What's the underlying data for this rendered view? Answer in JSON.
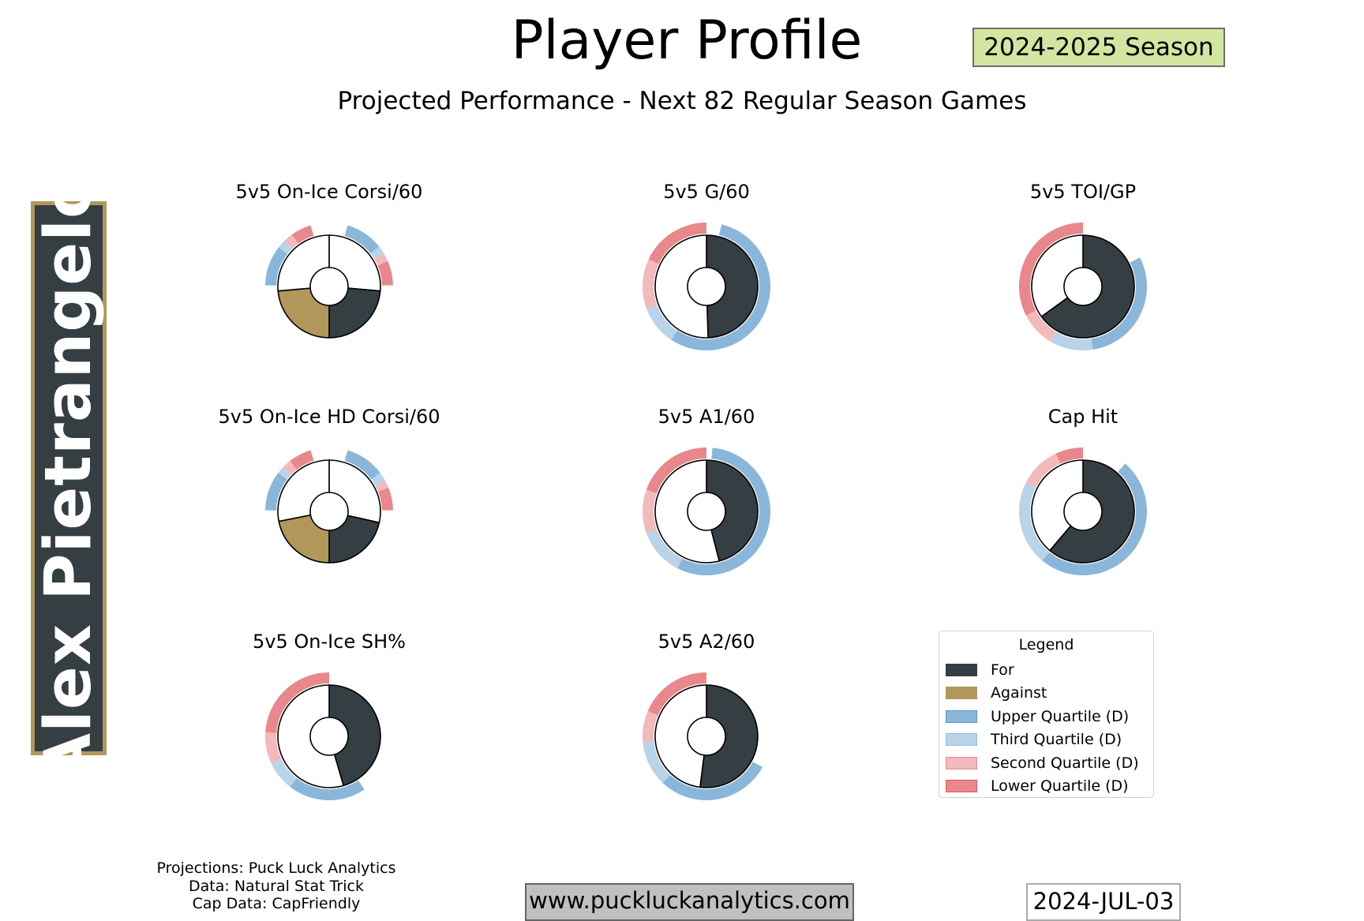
{
  "header": {
    "title": "Player Profile",
    "subtitle": "Projected Performance - Next 82 Regular Season Games",
    "season": "2024-2025 Season"
  },
  "player": {
    "name": "Alex Pietrangelo"
  },
  "colors": {
    "for": "#343e43",
    "against": "#b2975a",
    "remainder": "#ffffff",
    "upper_quartile": "#8ab6d9",
    "third_quartile": "#b9d4e8",
    "second_quartile": "#f3b9bb",
    "lower_quartile": "#e8888c",
    "season_badge": "#d3e5a0",
    "banner_border": "#b2975a"
  },
  "legend": {
    "title": "Legend",
    "items": [
      {
        "label": "For",
        "color": "#343e43",
        "border": "#343e43"
      },
      {
        "label": "Against",
        "color": "#b2975a",
        "border": "#b2975a"
      },
      {
        "label": "Upper Quartile (D)",
        "color": "#8ab6d9",
        "border": "#5f93c4"
      },
      {
        "label": "Third Quartile (D)",
        "color": "#b9d4e8",
        "border": "#93bcdc"
      },
      {
        "label": "Second Quartile (D)",
        "color": "#f3b9bb",
        "border": "#e8888c"
      },
      {
        "label": "Lower Quartile (D)",
        "color": "#e8888c",
        "border": "#d85c62"
      }
    ]
  },
  "chart_data": [
    {
      "type": "pie",
      "title": "5v5 On-Ice Corsi/60",
      "style": "for-against",
      "inner": [
        {
          "label": "For",
          "color_key": "for",
          "fraction": 0.236
        },
        {
          "label": "",
          "color_key": "remainder",
          "fraction": 0.264
        },
        {
          "label": "",
          "color_key": "remainder",
          "fraction": 0.264
        },
        {
          "label": "Against",
          "color_key": "against",
          "fraction": 0.236
        }
      ],
      "quartile_bands": [
        {
          "side": "for",
          "quartiles": [
            0.096,
            0.02,
            0.022,
            0.062
          ]
        },
        {
          "side": "against",
          "quartiles": [
            0.102,
            0.022,
            0.024,
            0.052
          ]
        }
      ]
    },
    {
      "type": "pie",
      "title": "5v5 G/60",
      "style": "single",
      "inner_for_fraction": 0.495,
      "quartiles": [
        0.555,
        0.1,
        0.127,
        0.18
      ]
    },
    {
      "type": "pie",
      "title": "5v5 TOI/GP",
      "style": "single",
      "inner_for_fraction": 0.65,
      "quartiles": [
        0.3,
        0.11,
        0.09,
        0.325
      ]
    },
    {
      "type": "pie",
      "title": "5v5 On-Ice HD Corsi/60",
      "style": "for-against",
      "inner": [
        {
          "label": "For",
          "color_key": "for",
          "fraction": 0.215
        },
        {
          "label": "",
          "color_key": "remainder",
          "fraction": 0.285
        },
        {
          "label": "",
          "color_key": "remainder",
          "fraction": 0.281
        },
        {
          "label": "Against",
          "color_key": "against",
          "fraction": 0.219
        }
      ],
      "quartile_bands": [
        {
          "side": "for",
          "quartiles": [
            0.1,
            0.022,
            0.02,
            0.058
          ]
        },
        {
          "side": "against",
          "quartiles": [
            0.1,
            0.02,
            0.022,
            0.058
          ]
        }
      ]
    },
    {
      "type": "pie",
      "title": "5v5 A1/60",
      "style": "single",
      "inner_for_fraction": 0.46,
      "quartiles": [
        0.56,
        0.12,
        0.11,
        0.195
      ]
    },
    {
      "type": "pie",
      "title": "Cap Hit",
      "style": "single",
      "inner_for_fraction": 0.612,
      "quartiles": [
        0.495,
        0.215,
        0.105,
        0.07
      ]
    },
    {
      "type": "pie",
      "title": "5v5 On-Ice SH%",
      "style": "single",
      "inner_for_fraction": 0.455,
      "quartiles": [
        0.198,
        0.075,
        0.08,
        0.24
      ]
    },
    {
      "type": "pie",
      "title": "5v5 A2/60",
      "style": "single",
      "inner_for_fraction": 0.52,
      "quartiles": [
        0.29,
        0.115,
        0.08,
        0.185
      ]
    }
  ],
  "footer": {
    "credits": [
      "Projections: Puck Luck Analytics",
      "Data: Natural Stat Trick",
      "Cap Data: CapFriendly"
    ],
    "website": "www.puckluckanalytics.com",
    "date": "2024-JUL-03"
  }
}
